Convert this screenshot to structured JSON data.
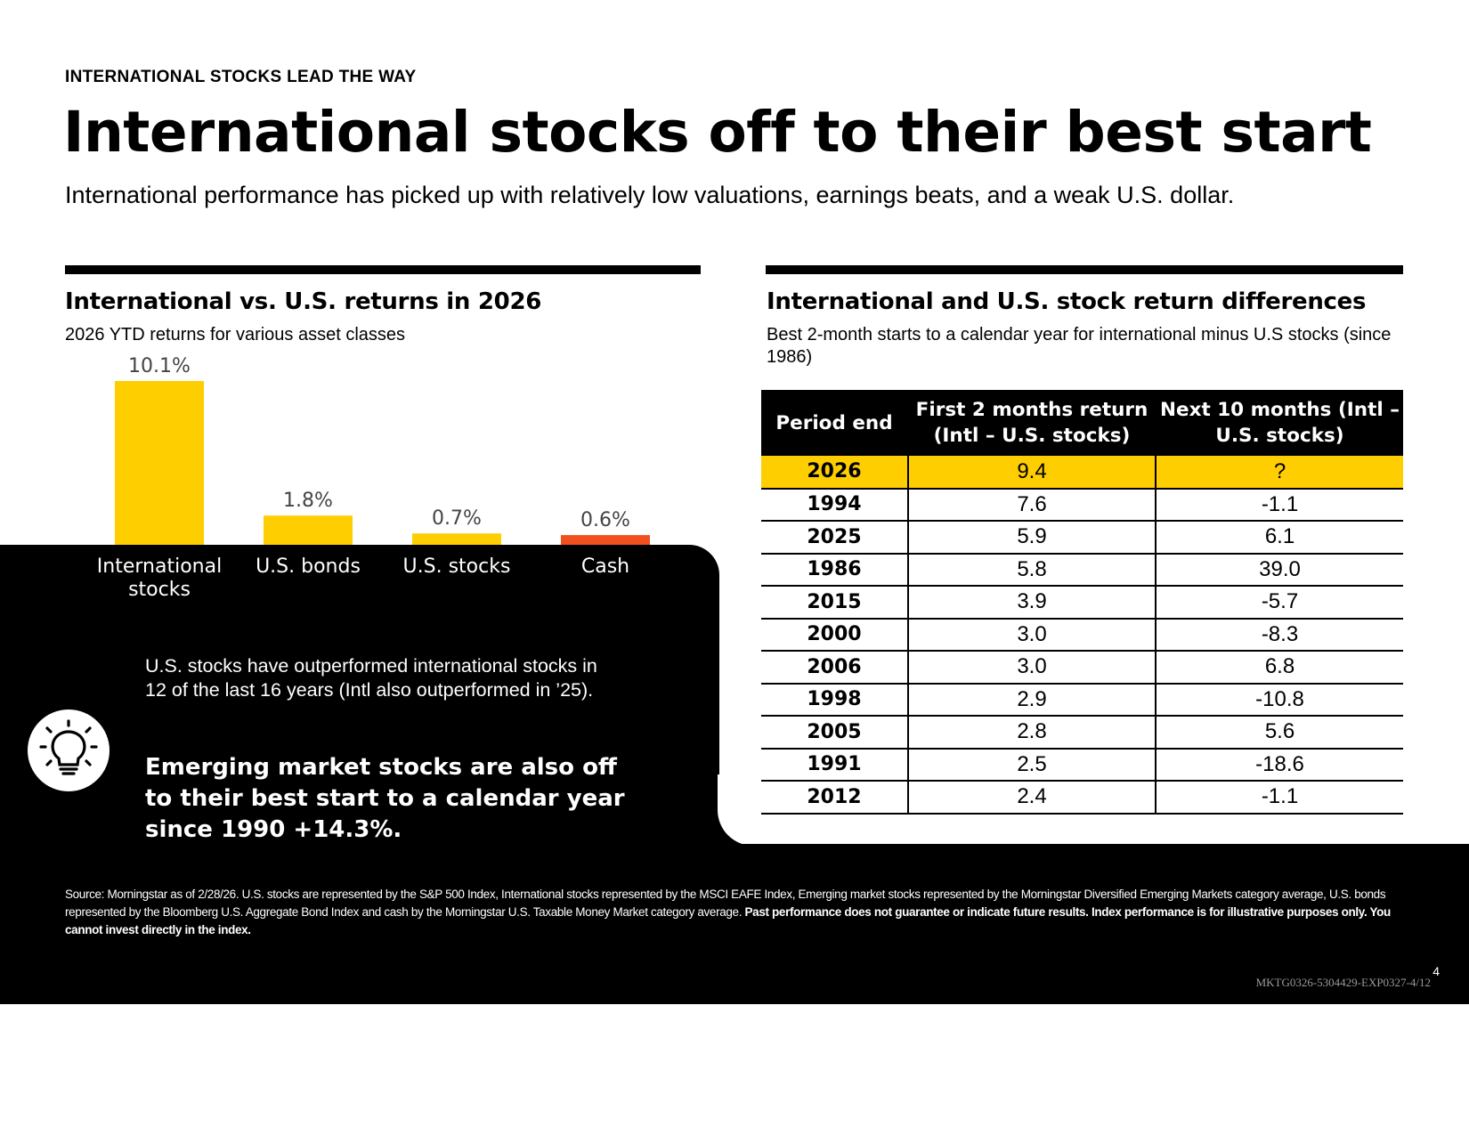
{
  "eyebrow": "INTERNATIONAL STOCKS LEAD THE WAY",
  "headline": "International stocks off to their best start",
  "subhead": "International performance has picked up with relatively low valuations, earnings beats, and a weak U.S. dollar.",
  "left_panel": {
    "title": "International vs. U.S. returns in 2026",
    "subtitle": "2026 YTD returns for various asset classes"
  },
  "right_panel": {
    "title": "International and U.S. stock return differences",
    "subtitle": "Best 2-month starts to a calendar year for international minus U.S stocks (since 1986)"
  },
  "chart_data": {
    "type": "bar",
    "categories": [
      "International stocks",
      "U.S. bonds",
      "U.S. stocks",
      "Cash"
    ],
    "values": [
      10.1,
      1.8,
      0.7,
      0.6
    ],
    "data_labels": [
      "10.1%",
      "1.8%",
      "0.7%",
      "0.6%"
    ],
    "colors": [
      "#ffce00",
      "#ffce00",
      "#ffce00",
      "#f2501e"
    ],
    "title": "International vs. U.S. returns in 2026",
    "subtitle": "2026 YTD returns for various asset classes",
    "ylim": [
      0,
      10.1
    ],
    "grid": false,
    "legend": "none"
  },
  "table": {
    "headers": [
      "Period end",
      "First 2 months return (Intl – U.S. stocks)",
      "Next 10 months (Intl – U.S. stocks)"
    ],
    "rows": [
      [
        "2026",
        "9.4",
        "?"
      ],
      [
        "1994",
        "7.6",
        "-1.1"
      ],
      [
        "2025",
        "5.9",
        "6.1"
      ],
      [
        "1986",
        "5.8",
        "39.0"
      ],
      [
        "2015",
        "3.9",
        "-5.7"
      ],
      [
        "2000",
        "3.0",
        "-8.3"
      ],
      [
        "2006",
        "3.0",
        "6.8"
      ],
      [
        "1998",
        "2.9",
        "-10.8"
      ],
      [
        "2005",
        "2.8",
        "5.6"
      ],
      [
        "1991",
        "2.5",
        "-18.6"
      ],
      [
        "2012",
        "2.4",
        "-1.1"
      ]
    ],
    "highlight_color": "#ffce00"
  },
  "callout": {
    "text": "U.S. stocks have outperformed international stocks in 12 of the last 16 years (Intl also outperformed in ’25).",
    "bold": "Emerging market stocks are also off to their best start to a calendar year since 1990 +14.3%.",
    "icon": "lightbulb-icon"
  },
  "footer": {
    "source": "Source: Morningstar as of 2/28/26. U.S. stocks are represented by the S&P 500 Index, International stocks represented by the MSCI EAFE Index, Emerging market stocks represented by the Morningstar Diversified Emerging Markets  category average, U.S. bonds represented by the Bloomberg U.S. Aggregate Bond Index and cash by the Morningstar U.S. Taxable Money Market category average. ",
    "disclaimer": "Past performance does not guarantee or indicate future results.  Index performance is for illustrative purposes only. You cannot invest directly in the index.",
    "code": "MKTG0326-5304429-EXP0327-4/12",
    "page": "4"
  }
}
